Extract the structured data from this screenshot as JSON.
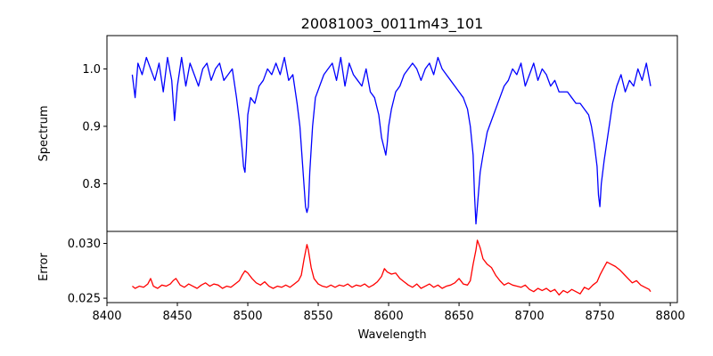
{
  "chart_data": {
    "type": "line",
    "title": "20081003_0011m43_101",
    "xlabel": "Wavelength",
    "xlim": [
      8400,
      8805
    ],
    "xticks": [
      8400,
      8450,
      8500,
      8550,
      8600,
      8650,
      8700,
      8750,
      8800
    ],
    "panels": [
      {
        "name": "spectrum",
        "ylabel": "Spectrum",
        "ylim": [
          0.717,
          1.058
        ],
        "yticks": [
          0.8,
          0.9,
          1.0
        ],
        "ytick_labels": [
          "0.8",
          "0.9",
          "1.0"
        ],
        "series": [
          {
            "name": "Spectrum",
            "color": "#0000ff",
            "x": [
              8418,
              8420,
              8422,
              8425,
              8428,
              8431,
              8434,
              8437,
              8440,
              8443,
              8446,
              8448,
              8450,
              8453,
              8456,
              8459,
              8462,
              8465,
              8468,
              8471,
              8474,
              8477,
              8480,
              8483,
              8486,
              8489,
              8492,
              8494,
              8496,
              8497,
              8498,
              8499,
              8500,
              8502,
              8505,
              8508,
              8511,
              8514,
              8517,
              8520,
              8523,
              8526,
              8529,
              8532,
              8535,
              8537,
              8539,
              8541,
              8542,
              8543,
              8544,
              8546,
              8548,
              8551,
              8554,
              8557,
              8560,
              8563,
              8566,
              8569,
              8572,
              8575,
              8578,
              8581,
              8584,
              8587,
              8590,
              8593,
              8595,
              8597,
              8598,
              8599,
              8600,
              8602,
              8605,
              8608,
              8611,
              8614,
              8617,
              8620,
              8623,
              8626,
              8629,
              8632,
              8635,
              8638,
              8641,
              8644,
              8647,
              8650,
              8653,
              8656,
              8658,
              8660,
              8661,
              8662,
              8663,
              8665,
              8667,
              8670,
              8673,
              8676,
              8679,
              8682,
              8685,
              8688,
              8691,
              8694,
              8697,
              8700,
              8703,
              8706,
              8709,
              8712,
              8715,
              8718,
              8721,
              8724,
              8727,
              8730,
              8733,
              8736,
              8739,
              8742,
              8744,
              8746,
              8748,
              8749,
              8750,
              8751,
              8753,
              8756,
              8759,
              8762,
              8765,
              8768,
              8771,
              8774,
              8777,
              8780,
              8783,
              8786
            ],
            "values": [
              0.99,
              0.95,
              1.01,
              0.99,
              1.02,
              1.0,
              0.98,
              1.01,
              0.96,
              1.02,
              0.98,
              0.91,
              0.97,
              1.02,
              0.97,
              1.01,
              0.99,
              0.97,
              1.0,
              1.01,
              0.98,
              1.0,
              1.01,
              0.98,
              0.99,
              1.0,
              0.95,
              0.91,
              0.86,
              0.83,
              0.82,
              0.86,
              0.92,
              0.95,
              0.94,
              0.97,
              0.98,
              1.0,
              0.99,
              1.01,
              0.99,
              1.02,
              0.98,
              0.99,
              0.94,
              0.9,
              0.83,
              0.76,
              0.75,
              0.76,
              0.82,
              0.9,
              0.95,
              0.97,
              0.99,
              1.0,
              1.01,
              0.98,
              1.02,
              0.97,
              1.01,
              0.99,
              0.98,
              0.97,
              1.0,
              0.96,
              0.95,
              0.92,
              0.88,
              0.86,
              0.85,
              0.87,
              0.9,
              0.93,
              0.96,
              0.97,
              0.99,
              1.0,
              1.01,
              1.0,
              0.98,
              1.0,
              1.01,
              0.99,
              1.02,
              1.0,
              0.99,
              0.98,
              0.97,
              0.96,
              0.95,
              0.93,
              0.9,
              0.85,
              0.78,
              0.73,
              0.76,
              0.82,
              0.85,
              0.89,
              0.91,
              0.93,
              0.95,
              0.97,
              0.98,
              1.0,
              0.99,
              1.01,
              0.97,
              0.99,
              1.01,
              0.98,
              1.0,
              0.99,
              0.97,
              0.98,
              0.96,
              0.96,
              0.96,
              0.95,
              0.94,
              0.94,
              0.93,
              0.92,
              0.9,
              0.87,
              0.83,
              0.78,
              0.76,
              0.8,
              0.84,
              0.89,
              0.94,
              0.97,
              0.99,
              0.96,
              0.98,
              0.97,
              1.0,
              0.98,
              1.01,
              0.97
            ]
          }
        ]
      },
      {
        "name": "error",
        "ylabel": "Error",
        "ylim": [
          0.0246,
          0.0311
        ],
        "yticks": [
          0.025,
          0.03
        ],
        "ytick_labels": [
          "0.025",
          "0.030"
        ],
        "series": [
          {
            "name": "Error",
            "color": "#ff0000",
            "x": [
              8418,
              8420,
              8423,
              8426,
              8429,
              8431,
              8433,
              8436,
              8439,
              8442,
              8445,
              8447,
              8449,
              8452,
              8455,
              8458,
              8461,
              8464,
              8467,
              8470,
              8473,
              8476,
              8479,
              8482,
              8485,
              8488,
              8491,
              8494,
              8496,
              8498,
              8500,
              8503,
              8506,
              8509,
              8512,
              8515,
              8518,
              8521,
              8524,
              8527,
              8530,
              8533,
              8536,
              8538,
              8540,
              8542,
              8543,
              8545,
              8547,
              8550,
              8553,
              8556,
              8559,
              8562,
              8565,
              8568,
              8571,
              8574,
              8577,
              8580,
              8583,
              8586,
              8589,
              8592,
              8595,
              8597,
              8599,
              8602,
              8605,
              8608,
              8611,
              8614,
              8617,
              8620,
              8623,
              8626,
              8629,
              8632,
              8635,
              8638,
              8641,
              8644,
              8647,
              8650,
              8653,
              8656,
              8658,
              8660,
              8662,
              8663,
              8665,
              8667,
              8670,
              8673,
              8676,
              8679,
              8682,
              8685,
              8688,
              8691,
              8694,
              8697,
              8700,
              8703,
              8706,
              8709,
              8712,
              8715,
              8718,
              8721,
              8724,
              8727,
              8730,
              8733,
              8736,
              8739,
              8742,
              8745,
              8748,
              8750,
              8752,
              8755,
              8758,
              8761,
              8764,
              8767,
              8770,
              8773,
              8776,
              8779,
              8782,
              8785,
              8786
            ],
            "values": [
              0.0261,
              0.0259,
              0.0261,
              0.026,
              0.0263,
              0.0268,
              0.0261,
              0.0259,
              0.0262,
              0.0261,
              0.0263,
              0.0266,
              0.0268,
              0.0262,
              0.026,
              0.0263,
              0.0261,
              0.0259,
              0.0262,
              0.0264,
              0.0261,
              0.0263,
              0.0262,
              0.0259,
              0.0261,
              0.026,
              0.0263,
              0.0266,
              0.0271,
              0.0275,
              0.0273,
              0.0268,
              0.0264,
              0.0262,
              0.0265,
              0.0261,
              0.0259,
              0.0261,
              0.026,
              0.0262,
              0.026,
              0.0263,
              0.0266,
              0.0271,
              0.0286,
              0.0299,
              0.0294,
              0.0278,
              0.0268,
              0.0263,
              0.0261,
              0.026,
              0.0262,
              0.026,
              0.0262,
              0.0261,
              0.0263,
              0.026,
              0.0262,
              0.0261,
              0.0263,
              0.026,
              0.0262,
              0.0265,
              0.027,
              0.0277,
              0.0274,
              0.0272,
              0.0273,
              0.0268,
              0.0265,
              0.0262,
              0.026,
              0.0263,
              0.0259,
              0.0261,
              0.0263,
              0.026,
              0.0262,
              0.0259,
              0.0261,
              0.0262,
              0.0264,
              0.0268,
              0.0263,
              0.0262,
              0.0266,
              0.0281,
              0.0294,
              0.0303,
              0.0296,
              0.0286,
              0.0281,
              0.0278,
              0.0271,
              0.0266,
              0.0262,
              0.0264,
              0.0262,
              0.0261,
              0.026,
              0.0262,
              0.0258,
              0.0256,
              0.0259,
              0.0257,
              0.0259,
              0.0256,
              0.0258,
              0.0253,
              0.0257,
              0.0255,
              0.0258,
              0.0256,
              0.0254,
              0.026,
              0.0258,
              0.0262,
              0.0265,
              0.0271,
              0.0276,
              0.0283,
              0.0281,
              0.0279,
              0.0276,
              0.0272,
              0.0268,
              0.0264,
              0.0266,
              0.0262,
              0.026,
              0.0258,
              0.0256
            ]
          }
        ]
      }
    ]
  }
}
